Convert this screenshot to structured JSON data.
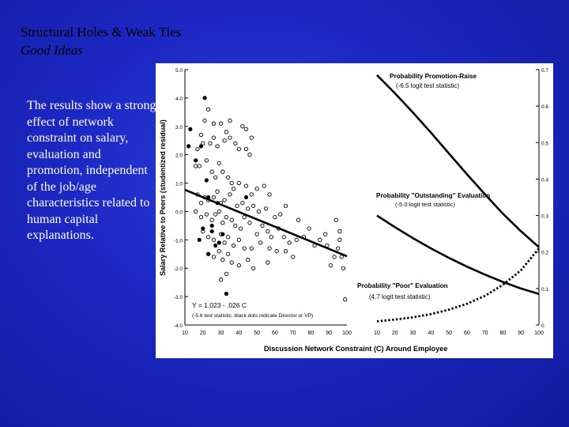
{
  "slide": {
    "title": "Structural Holes & Weak Ties",
    "subtitle": "Good Ideas",
    "body": "The results show a strong effect of network constraint on salary, evaluation and promotion, independent of the job/age characteristics related to human capital explanations."
  },
  "colors": {
    "background": "#1c27c2",
    "text": "#ffffff",
    "title": "#000000"
  },
  "chart_data": [
    {
      "type": "scatter",
      "xlabel": "Discussion Network Constraint (C) Around Employee",
      "ylabel": "Salary Relative to Peers (studentized residual)",
      "xlim": [
        10,
        100
      ],
      "ylim": [
        -4.0,
        5.0
      ],
      "x_ticks": [
        "10",
        "20",
        "30",
        "40",
        "50",
        "60",
        "70",
        "80",
        "90",
        "100"
      ],
      "y_ticks": [
        "5.0",
        "4.0",
        "3.0",
        "2.0",
        "1.0",
        "0.0",
        "-1.0",
        "-2.0",
        "-3.0",
        "-4.0"
      ],
      "fit_line": {
        "x": [
          10,
          100
        ],
        "y": [
          0.763,
          -1.577
        ]
      },
      "annotation_line1": "Y = 1.023 - .026 C",
      "annotation_line2": "(-5.6 test statistic, black dots indicate Director or VP)",
      "points_open": [
        [
          21,
          3.2
        ],
        [
          23,
          3.6
        ],
        [
          26,
          3.1
        ],
        [
          30,
          3.1
        ],
        [
          33,
          2.8
        ],
        [
          35,
          3.2
        ],
        [
          42,
          3.0
        ],
        [
          44,
          2.9
        ],
        [
          47,
          2.6
        ],
        [
          17,
          2.2
        ],
        [
          19,
          2.7
        ],
        [
          20,
          2.4
        ],
        [
          24,
          2.4
        ],
        [
          26,
          2.6
        ],
        [
          28,
          2.3
        ],
        [
          32,
          2.5
        ],
        [
          35,
          2.6
        ],
        [
          38,
          2.4
        ],
        [
          40,
          2.2
        ],
        [
          44,
          2.2
        ],
        [
          46,
          2.0
        ],
        [
          16,
          1.6
        ],
        [
          18,
          1.6
        ],
        [
          22,
          1.8
        ],
        [
          25,
          1.4
        ],
        [
          27,
          1.2
        ],
        [
          29,
          1.7
        ],
        [
          31,
          1.4
        ],
        [
          34,
          1.2
        ],
        [
          36,
          1.0
        ],
        [
          40,
          1.0
        ],
        [
          44,
          0.9
        ],
        [
          47,
          0.6
        ],
        [
          50,
          0.8
        ],
        [
          54,
          0.9
        ],
        [
          57,
          0.6
        ],
        [
          17,
          0.6
        ],
        [
          19,
          0.3
        ],
        [
          21,
          0.5
        ],
        [
          23,
          0.4
        ],
        [
          26,
          0.5
        ],
        [
          28,
          0.7
        ],
        [
          30,
          0.3
        ],
        [
          32,
          0.4
        ],
        [
          35,
          0.6
        ],
        [
          37,
          0.8
        ],
        [
          39,
          0.2
        ],
        [
          42,
          0.3
        ],
        [
          45,
          0.1
        ],
        [
          48,
          0.2
        ],
        [
          51,
          0.0
        ],
        [
          55,
          0.1
        ],
        [
          60,
          -0.2
        ],
        [
          63,
          -0.1
        ],
        [
          66,
          0.2
        ],
        [
          16,
          0.0
        ],
        [
          19,
          -0.2
        ],
        [
          22,
          -0.1
        ],
        [
          25,
          -0.3
        ],
        [
          27,
          -0.1
        ],
        [
          29,
          0.0
        ],
        [
          31,
          -0.4
        ],
        [
          33,
          -0.2
        ],
        [
          36,
          -0.3
        ],
        [
          38,
          -0.5
        ],
        [
          41,
          -0.6
        ],
        [
          43,
          -0.2
        ],
        [
          46,
          -0.4
        ],
        [
          50,
          -0.8
        ],
        [
          53,
          -0.5
        ],
        [
          56,
          -0.7
        ],
        [
          58,
          -0.9
        ],
        [
          62,
          -0.6
        ],
        [
          65,
          -0.9
        ],
        [
          68,
          -1.1
        ],
        [
          72,
          -1.0
        ],
        [
          20,
          -0.7
        ],
        [
          23,
          -0.9
        ],
        [
          26,
          -1.0
        ],
        [
          30,
          -0.8
        ],
        [
          32,
          -1.1
        ],
        [
          34,
          -0.9
        ],
        [
          37,
          -1.2
        ],
        [
          40,
          -1.0
        ],
        [
          43,
          -1.3
        ],
        [
          47,
          -1.3
        ],
        [
          52,
          -1.1
        ],
        [
          57,
          -1.3
        ],
        [
          61,
          -1.4
        ],
        [
          66,
          -1.4
        ],
        [
          70,
          -1.6
        ],
        [
          23,
          -1.5
        ],
        [
          26,
          -1.6
        ],
        [
          29,
          -1.4
        ],
        [
          31,
          -1.7
        ],
        [
          34,
          -1.5
        ],
        [
          36,
          -1.8
        ],
        [
          40,
          -1.9
        ],
        [
          45,
          -1.7
        ],
        [
          48,
          -2.0
        ],
        [
          56,
          -1.8
        ],
        [
          30,
          -2.4
        ],
        [
          33,
          -2.2
        ],
        [
          88,
          -0.8
        ],
        [
          89,
          -1.2
        ],
        [
          91,
          -1.9
        ],
        [
          93,
          -1.6
        ],
        [
          95,
          -1.3
        ],
        [
          96,
          -1.0
        ],
        [
          97,
          -1.6
        ],
        [
          98,
          -2.0
        ],
        [
          99,
          -3.1
        ],
        [
          96,
          -0.7
        ],
        [
          94,
          -0.3
        ],
        [
          79,
          -0.6
        ],
        [
          76,
          -0.9
        ],
        [
          73,
          -0.3
        ],
        [
          82,
          -1.2
        ],
        [
          85,
          -1.0
        ]
      ],
      "points_filled": [
        [
          21,
          4.0
        ],
        [
          13,
          2.9
        ],
        [
          12,
          2.3
        ],
        [
          19,
          2.3
        ],
        [
          16,
          1.8
        ],
        [
          22,
          1.1
        ],
        [
          23,
          0.5
        ],
        [
          28,
          0.3
        ],
        [
          25,
          -0.5
        ],
        [
          20,
          -0.6
        ],
        [
          25,
          -0.7
        ],
        [
          31,
          -0.8
        ],
        [
          27,
          -1.2
        ],
        [
          29,
          -1.1
        ],
        [
          23,
          -1.5
        ],
        [
          33,
          -2.9
        ],
        [
          18,
          -1.0
        ],
        [
          44,
          0.5
        ]
      ]
    },
    {
      "type": "line",
      "xlabel": "",
      "xlim": [
        10,
        100
      ],
      "ylim": [
        0,
        0.7
      ],
      "x_ticks": [
        "10",
        "20",
        "30",
        "40",
        "50",
        "60",
        "70",
        "80",
        "90",
        "100"
      ],
      "y_ticks": [
        "0.7",
        "0.6",
        "0.5",
        "0.4",
        "0.3",
        "0.2",
        "0.1",
        "0"
      ],
      "series": [
        {
          "name": "Probability Promotion-Raise",
          "note": "(-6.5 logit test statistic)",
          "style": "solid",
          "x": [
            10,
            20,
            30,
            40,
            50,
            60,
            70,
            80,
            90,
            100
          ],
          "y": [
            0.685,
            0.635,
            0.582,
            0.527,
            0.47,
            0.413,
            0.358,
            0.305,
            0.257,
            0.213
          ]
        },
        {
          "name": "Probability \"Outstanding\" Evaluation",
          "note": "(-5.0 logit test statistic)",
          "style": "solid",
          "x": [
            10,
            20,
            30,
            40,
            50,
            60,
            70,
            80,
            90,
            100
          ],
          "y": [
            0.3,
            0.268,
            0.238,
            0.21,
            0.184,
            0.16,
            0.138,
            0.118,
            0.1,
            0.085
          ]
        },
        {
          "name": "Probability \"Poor\" Evaluation",
          "note": "(4.7 logit test statistic)",
          "style": "dotted",
          "x": [
            10,
            20,
            30,
            40,
            50,
            60,
            70,
            80,
            90,
            100
          ],
          "y": [
            0.01,
            0.015,
            0.021,
            0.03,
            0.042,
            0.058,
            0.08,
            0.11,
            0.15,
            0.21
          ]
        }
      ]
    }
  ]
}
